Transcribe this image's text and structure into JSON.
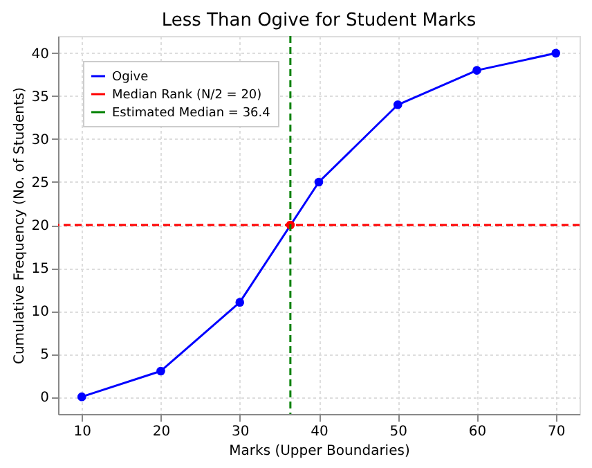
{
  "chart_data": {
    "type": "line",
    "title": "Less Than Ogive for Student Marks",
    "xlabel": "Marks (Upper Boundaries)",
    "ylabel": "Cumulative Frequency (No. of Students)",
    "x": [
      10,
      20,
      30,
      40,
      50,
      60,
      70
    ],
    "series": [
      {
        "name": "Ogive",
        "color": "#0000ff",
        "values": [
          0,
          3,
          11,
          25,
          34,
          38,
          40
        ],
        "marker": "circle"
      },
      {
        "type": "scatter",
        "color": "#ff0000",
        "x": [
          36.4
        ],
        "values": [
          20
        ],
        "marker": "circle"
      }
    ],
    "ref_lines": [
      {
        "axis": "y",
        "value": 20,
        "label": "Median Rank (N/2 = 20)",
        "color": "#ff0000",
        "line_style": "dashed"
      },
      {
        "axis": "x",
        "value": 36.4,
        "label": "Estimated Median = 36.4",
        "color": "#008000",
        "line_style": "dashed"
      }
    ],
    "xlim": [
      7,
      73
    ],
    "ylim": [
      -2,
      42
    ],
    "xticks": [
      10,
      20,
      30,
      40,
      50,
      60,
      70
    ],
    "yticks": [
      0,
      5,
      10,
      15,
      20,
      25,
      30,
      35,
      40
    ],
    "grid": true,
    "legend": "top left"
  }
}
